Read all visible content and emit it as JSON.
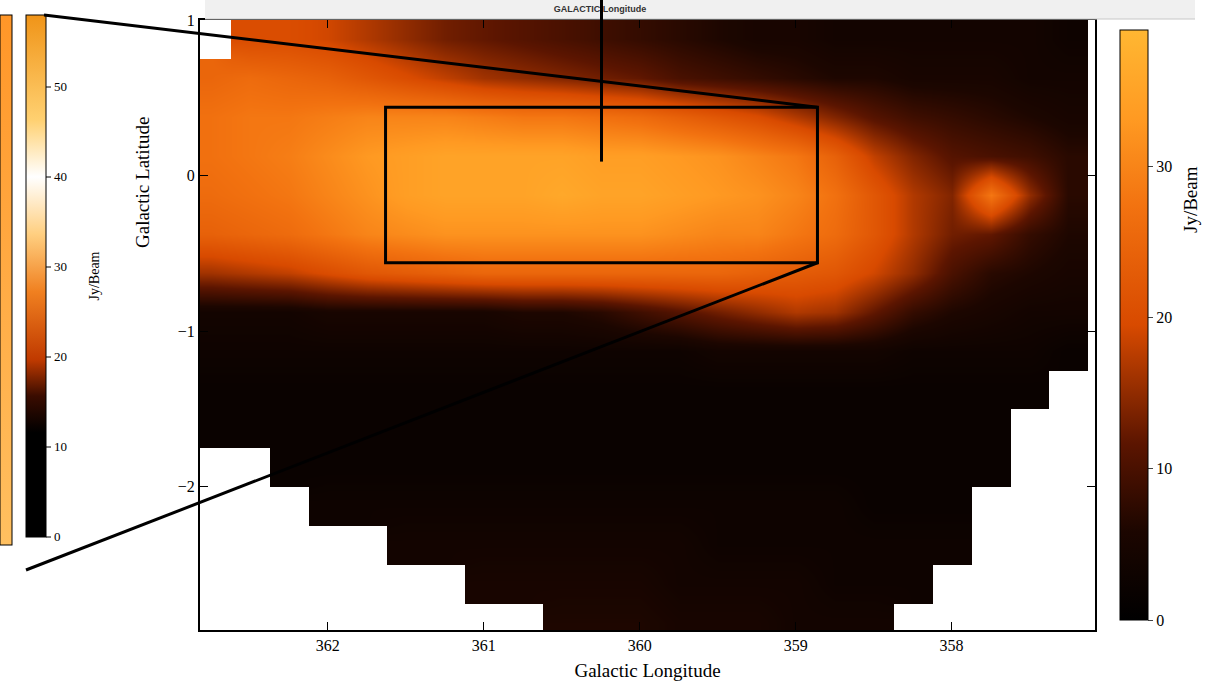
{
  "chart_data": {
    "type": "heatmap",
    "x_label": "Galactic Longitude",
    "y_label": "Galactic Latitude",
    "x": [
      362.75,
      362.5,
      362.25,
      362,
      361.75,
      361.5,
      361.25,
      361,
      360.75,
      360.5,
      360.25,
      360,
      359.75,
      359.5,
      359.25,
      359,
      358.75,
      358.5,
      358.25,
      358,
      357.75,
      357.5,
      357.25
    ],
    "y": [
      0.875,
      0.625,
      0.375,
      0.125,
      -0.125,
      -0.375,
      -0.625,
      -0.875,
      -1.125,
      -1.375,
      -1.625,
      -1.875,
      -2.125,
      -2.375,
      -2.625,
      -2.875
    ],
    "z": [
      [
        null,
        20,
        20,
        19,
        17,
        15,
        13,
        12,
        11,
        10,
        9,
        8,
        7,
        6,
        5,
        5,
        4,
        4,
        4,
        4,
        4,
        4,
        3
      ],
      [
        25,
        26,
        25,
        24,
        22,
        20,
        18,
        16,
        15,
        14,
        13,
        12,
        10,
        9,
        8,
        7,
        6,
        6,
        5,
        5,
        5,
        4,
        4
      ],
      [
        27,
        28,
        28,
        29,
        30,
        30,
        30,
        29,
        28,
        28,
        27,
        26,
        24,
        22,
        20,
        17,
        14,
        11,
        9,
        8,
        7,
        6,
        5
      ],
      [
        27,
        28,
        29,
        31,
        33,
        34,
        35,
        35,
        35,
        35,
        34,
        34,
        33,
        32,
        30,
        28,
        24,
        18,
        14,
        11,
        10,
        9,
        7
      ],
      [
        26,
        27,
        28,
        30,
        32,
        34,
        35,
        35,
        35,
        36,
        35,
        35,
        34,
        33,
        32,
        30,
        27,
        22,
        17,
        14,
        28,
        15,
        7
      ],
      [
        24,
        25,
        26,
        28,
        30,
        31,
        32,
        32,
        32,
        32,
        32,
        32,
        31,
        30,
        30,
        28,
        26,
        22,
        17,
        13,
        12,
        8,
        6
      ],
      [
        16,
        17,
        18,
        20,
        22,
        23,
        24,
        25,
        25,
        25,
        25,
        25,
        25,
        25,
        24,
        23,
        22,
        19,
        15,
        10,
        7,
        6,
        5
      ],
      [
        4,
        4,
        4,
        5,
        5,
        5,
        5,
        5,
        6,
        6,
        7,
        9,
        11,
        13,
        15,
        17,
        16,
        12,
        8,
        6,
        5,
        4,
        4
      ],
      [
        3,
        3,
        3,
        3,
        3,
        3,
        3,
        3,
        3,
        3,
        3,
        3,
        3,
        4,
        4,
        4,
        4,
        4,
        3,
        3,
        3,
        3,
        2
      ],
      [
        2,
        2,
        2,
        2,
        2,
        2,
        2,
        2,
        2,
        2,
        2,
        2,
        2,
        2,
        2,
        2,
        2,
        2,
        2,
        2,
        2,
        2,
        null
      ],
      [
        2,
        2,
        2,
        2,
        2,
        2,
        2,
        2,
        2,
        2,
        2,
        2,
        2,
        2,
        2,
        2,
        2,
        2,
        2,
        2,
        2,
        null,
        null
      ],
      [
        null,
        null,
        2,
        2,
        2,
        2,
        2,
        2,
        2,
        2,
        2,
        2,
        2,
        2,
        2,
        2,
        2,
        2,
        2,
        2,
        2,
        null,
        null
      ],
      [
        null,
        null,
        null,
        3,
        3,
        3,
        3,
        3,
        3,
        3,
        3,
        3,
        3,
        3,
        3,
        3,
        3,
        2,
        2,
        2,
        null,
        null,
        null
      ],
      [
        null,
        null,
        null,
        null,
        null,
        4,
        4,
        4,
        4,
        4,
        4,
        4,
        4,
        3,
        3,
        3,
        3,
        3,
        3,
        3,
        null,
        null,
        null
      ],
      [
        null,
        null,
        null,
        null,
        null,
        null,
        null,
        5,
        5,
        5,
        5,
        5,
        4,
        4,
        4,
        4,
        3,
        3,
        3,
        null,
        null,
        null,
        null
      ],
      [
        null,
        null,
        null,
        null,
        null,
        null,
        null,
        null,
        null,
        6,
        6,
        6,
        5,
        5,
        5,
        4,
        4,
        4,
        null,
        null,
        null,
        null,
        null
      ]
    ],
    "xlim": [
      362.82,
      357.08
    ],
    "xticks": [
      362,
      361,
      360,
      359,
      358
    ],
    "ylim": [
      -2.92,
      1.0
    ],
    "yticks": [
      {
        "value": -2,
        "label": "−2"
      },
      {
        "value": -1,
        "label": "−1"
      },
      0,
      1
    ],
    "colorbar": {
      "range": [
        0,
        39
      ],
      "ticks": [
        0,
        10,
        20,
        30
      ],
      "label": "Jy/Beam"
    },
    "inset": {
      "title": "GALACTIC Longitude",
      "box": {
        "x": [
          361.63,
          358.86
        ],
        "y": [
          0.44,
          -0.56
        ]
      },
      "colorbar": {
        "range": [
          0,
          58
        ],
        "ticks": [
          0,
          10,
          20,
          30,
          40,
          50
        ],
        "label": "Jy/Beam"
      }
    }
  }
}
